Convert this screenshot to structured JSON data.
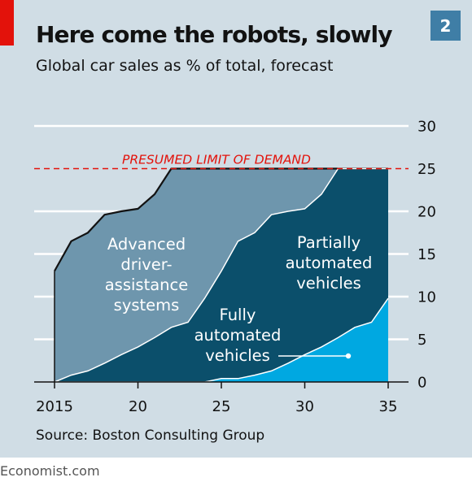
{
  "header": {
    "chart_number": "2",
    "title": "Here come the robots, slowly",
    "subtitle": "Global car sales as % of total, forecast"
  },
  "source": "Source: Boston Consulting Group",
  "footer": "Economist.com",
  "colors": {
    "background": "#d0dde5",
    "adas": "#6e96ad",
    "partial": "#0b4f6b",
    "full": "#00a8e1",
    "limit_line": "#e3120b",
    "brand_red": "#e3120b",
    "number_box": "#3f7ea6"
  },
  "chart_data": {
    "type": "area",
    "stacked_levels": true,
    "x": [
      2015,
      2016,
      2017,
      2018,
      2019,
      2020,
      2021,
      2022,
      2023,
      2024,
      2025,
      2026,
      2027,
      2028,
      2029,
      2030,
      2031,
      2032,
      2033,
      2034,
      2035
    ],
    "series": [
      {
        "name": "Advanced driver-assistance systems",
        "label_lines": [
          "Advanced",
          "driver-",
          "assistance",
          "systems"
        ],
        "color": "#6e96ad",
        "top": [
          13,
          16.5,
          17.5,
          19.6,
          20,
          20.3,
          22,
          25,
          25,
          25,
          25,
          25,
          25,
          25,
          25,
          25,
          25,
          25,
          25,
          25,
          25
        ]
      },
      {
        "name": "Partially automated vehicles",
        "label_lines": [
          "Partially",
          "automated",
          "vehicles"
        ],
        "color": "#0b4f6b",
        "top": [
          0,
          0.8,
          1.3,
          2.2,
          3.2,
          4.1,
          5.2,
          6.4,
          7,
          9.8,
          13,
          16.5,
          17.5,
          19.6,
          20,
          20.3,
          22,
          25,
          25,
          25,
          25
        ]
      },
      {
        "name": "Fully automated vehicles",
        "label_lines": [
          "Fully",
          "automated",
          "vehicles"
        ],
        "color": "#00a8e1",
        "top": [
          0,
          0,
          0,
          0,
          0,
          0,
          0,
          0,
          0,
          0,
          0.4,
          0.4,
          0.8,
          1.3,
          2.2,
          3.2,
          4.1,
          5.2,
          6.4,
          7,
          9.8
        ]
      }
    ],
    "limit": {
      "value": 25,
      "label": "PRESUMED LIMIT OF DEMAND"
    },
    "x_ticks": [
      {
        "value": 2015,
        "label": "2015"
      },
      {
        "value": 2020,
        "label": "20"
      },
      {
        "value": 2025,
        "label": "25"
      },
      {
        "value": 2030,
        "label": "30"
      },
      {
        "value": 2035,
        "label": "35"
      }
    ],
    "y_ticks": [
      0,
      5,
      10,
      15,
      20,
      25,
      30
    ],
    "xlim": [
      2015,
      2035
    ],
    "ylim": [
      0,
      30
    ],
    "grid": true,
    "y_axis_side": "right"
  }
}
